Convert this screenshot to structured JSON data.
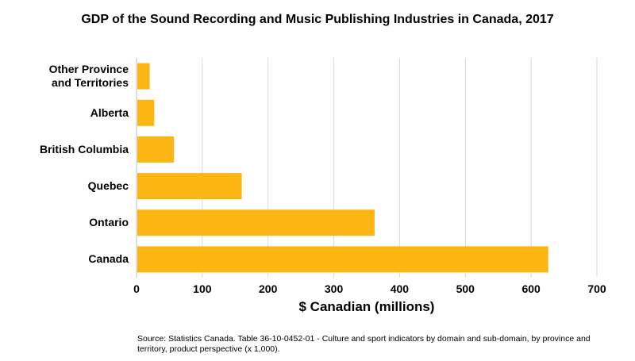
{
  "chart_data": {
    "type": "bar",
    "orientation": "horizontal",
    "title": "GDP of the Sound Recording and Music Publishing Industries in Canada, 2017",
    "xlabel": "$ Canadian (millions)",
    "ylabel": "",
    "categories": [
      "Other Province\nand Territories",
      "Alberta",
      "British Columbia",
      "Quebec",
      "Ontario",
      "Canada"
    ],
    "values": [
      20,
      27,
      57,
      160,
      362,
      626
    ],
    "xlim": [
      0,
      700
    ],
    "xticks": [
      "0",
      "100",
      "200",
      "300",
      "400",
      "500",
      "600",
      "700"
    ],
    "grid": true,
    "legend": "none",
    "bar_color": "#fbb614",
    "grid_color": "#d9d9d9",
    "source": "Source: Statistics Canada. Table 36-10-0452-01 - Culture and sport indicators by domain and sub-domain, by province and territory, product perspective (x 1,000)."
  }
}
